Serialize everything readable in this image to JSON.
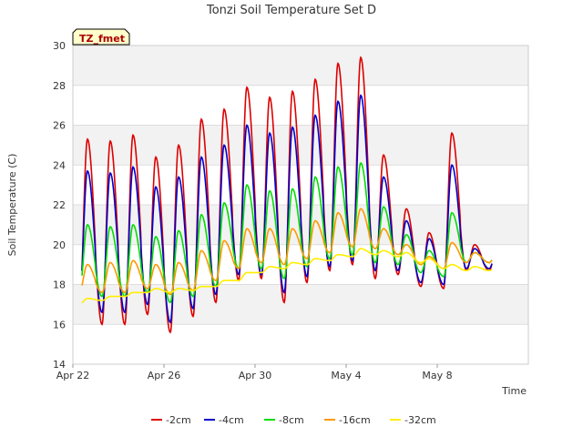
{
  "chart_data": {
    "type": "line",
    "title": "Tonzi Soil Temperature Set D",
    "xlabel": "Time",
    "ylabel": "Soil Temperature (C)",
    "badge": "TZ_fmet",
    "ylim": [
      14,
      30
    ],
    "yticks": [
      "14",
      "16",
      "18",
      "20",
      "22",
      "24",
      "26",
      "28",
      "30"
    ],
    "xlim": [
      "Apr 22",
      "May 10 23:59"
    ],
    "xticks": [
      {
        "label": "Apr 22",
        "day": 0
      },
      {
        "label": "Apr 26",
        "day": 4
      },
      {
        "label": "Apr 30",
        "day": 8
      },
      {
        "label": "May 4",
        "day": 12
      },
      {
        "label": "May 8",
        "day": 16
      }
    ],
    "grid": "horizontal bands",
    "legend_position": "bottom-center",
    "days": [
      "Apr 22",
      "Apr 23",
      "Apr 24",
      "Apr 25",
      "Apr 26",
      "Apr 27",
      "Apr 28",
      "Apr 29",
      "Apr 30",
      "May 1",
      "May 2",
      "May 3",
      "May 4",
      "May 5",
      "May 6",
      "May 7",
      "May 8",
      "May 9"
    ],
    "series": [
      {
        "name": "-2cm",
        "color": "#dd0000",
        "daily_max": [
          25.3,
          25.2,
          25.5,
          24.4,
          25.0,
          26.3,
          26.8,
          27.9,
          27.4,
          27.7,
          28.3,
          29.1,
          29.4,
          24.5,
          21.8,
          20.6,
          25.6,
          20.0
        ],
        "daily_min": [
          16.5,
          16.0,
          16.0,
          16.5,
          15.6,
          16.4,
          17.1,
          18.2,
          18.3,
          17.1,
          18.1,
          18.7,
          19.0,
          18.3,
          18.5,
          17.9,
          17.8,
          18.7
        ]
      },
      {
        "name": "-4cm",
        "color": "#0000cc",
        "daily_max": [
          23.7,
          23.6,
          23.9,
          22.9,
          23.4,
          24.4,
          25.0,
          26.0,
          25.6,
          25.9,
          26.5,
          27.2,
          27.5,
          23.4,
          21.2,
          20.3,
          24.0,
          19.8
        ],
        "daily_min": [
          17.0,
          16.6,
          16.6,
          17.0,
          16.1,
          16.8,
          17.5,
          18.5,
          18.5,
          17.6,
          18.4,
          18.9,
          19.2,
          18.7,
          18.7,
          18.1,
          18.0,
          18.8
        ]
      },
      {
        "name": "-8cm",
        "color": "#00dd00",
        "daily_max": [
          21.0,
          20.9,
          21.0,
          20.4,
          20.7,
          21.5,
          22.1,
          23.0,
          22.7,
          22.8,
          23.4,
          23.9,
          24.1,
          21.9,
          20.5,
          19.7,
          21.6,
          19.6
        ],
        "daily_min": [
          17.6,
          17.4,
          17.4,
          17.6,
          17.1,
          17.4,
          17.9,
          18.8,
          18.8,
          18.3,
          18.9,
          19.3,
          19.5,
          19.1,
          19.0,
          18.6,
          18.4,
          19.1
        ]
      },
      {
        "name": "-16cm",
        "color": "#ff9900",
        "daily_max": [
          19.0,
          19.1,
          19.2,
          19.0,
          19.1,
          19.7,
          20.2,
          20.8,
          20.8,
          20.8,
          21.2,
          21.6,
          21.8,
          20.8,
          20.0,
          19.4,
          20.1,
          19.6
        ],
        "daily_min": [
          17.6,
          17.6,
          17.6,
          17.8,
          17.5,
          17.7,
          18.2,
          18.8,
          19.1,
          19.0,
          19.3,
          19.6,
          19.9,
          19.8,
          19.5,
          19.0,
          18.8,
          19.1
        ]
      },
      {
        "name": "-32cm",
        "color": "#ffee00",
        "daily_max": [
          17.3,
          17.4,
          17.6,
          17.8,
          17.8,
          17.9,
          18.2,
          18.6,
          18.9,
          19.1,
          19.3,
          19.5,
          19.8,
          19.7,
          19.6,
          19.3,
          19.0,
          18.9
        ],
        "daily_min": [
          17.0,
          17.2,
          17.4,
          17.6,
          17.6,
          17.7,
          17.9,
          18.2,
          18.6,
          18.8,
          19.0,
          19.2,
          19.4,
          19.5,
          19.4,
          19.1,
          18.8,
          18.7
        ]
      }
    ]
  }
}
